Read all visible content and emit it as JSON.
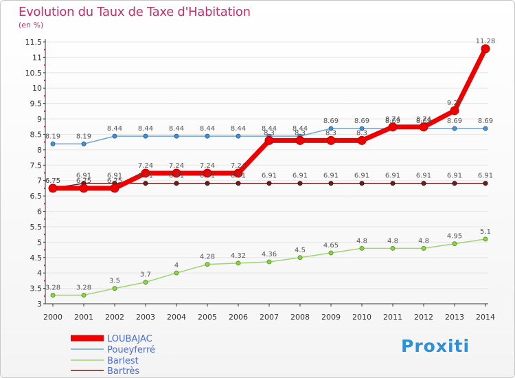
{
  "title": "Evolution du Taux de Taxe d'Habitation",
  "subtitle": "(en %)",
  "logo_text": "Proxiti",
  "chart_data": {
    "type": "line",
    "title": "Evolution du Taux de Taxe d'Habitation",
    "ylabel": "(en %)",
    "xlabel": "",
    "x": [
      "2000",
      "2001",
      "2002",
      "2003",
      "2004",
      "2005",
      "2006",
      "2007",
      "2008",
      "2009",
      "2010",
      "2011",
      "2012",
      "2013",
      "2014"
    ],
    "ylim": [
      3,
      11.5
    ],
    "yticks": [
      "3",
      "3.5",
      "4",
      "4.5",
      "5",
      "5.5",
      "6",
      "6.5",
      "7",
      "7.5",
      "8",
      "8.5",
      "9",
      "9.5",
      "10",
      "10.5",
      "11",
      "11.5"
    ],
    "series": [
      {
        "name": "Bartrès",
        "color": "#6b1e1e",
        "values": [
          6.75,
          6.91,
          6.91,
          6.91,
          6.91,
          6.91,
          6.91,
          6.91,
          6.91,
          6.91,
          6.91,
          6.91,
          6.91,
          6.91,
          6.91
        ],
        "labels": [
          "6.75",
          "6.91",
          "6.91",
          "6.91",
          "6.91",
          "6.91",
          "6.91",
          "6.91",
          "6.91",
          "6.91",
          "6.91",
          "6.91",
          "6.91",
          "6.91",
          "6.91"
        ]
      },
      {
        "name": "Barlest",
        "color": "#9fd46e",
        "values": [
          3.28,
          3.28,
          3.5,
          3.7,
          4,
          4.28,
          4.32,
          4.36,
          4.5,
          4.65,
          4.8,
          4.8,
          4.8,
          4.95,
          5.1
        ],
        "labels": [
          "3.28",
          "3.28",
          "3.5",
          "3.7",
          "4",
          "4.28",
          "4.32",
          "4.36",
          "4.5",
          "4.65",
          "4.8",
          "4.8",
          "4.8",
          "4.95",
          "5.1"
        ]
      },
      {
        "name": "Poueyferré",
        "color": "#6aa3d6",
        "values": [
          8.19,
          8.19,
          8.44,
          8.44,
          8.44,
          8.44,
          8.44,
          8.44,
          8.44,
          8.69,
          8.69,
          8.69,
          8.69,
          8.69,
          8.69
        ],
        "labels": [
          "8.19",
          "8.19",
          "8.44",
          "8.44",
          "8.44",
          "8.44",
          "8.44",
          "8.44",
          "8.44",
          "8.69",
          "8.69",
          "8.69",
          "8.69",
          "8.69",
          "8.69"
        ]
      },
      {
        "name": "LOUBAJAC",
        "color": "#ee0000",
        "values": [
          6.75,
          6.75,
          6.75,
          7.24,
          7.24,
          7.24,
          7.24,
          8.3,
          8.3,
          8.3,
          8.3,
          8.74,
          8.74,
          9.27,
          11.28
        ],
        "labels": [
          "6.75",
          "6.75",
          "6.75",
          "7.24",
          "7.24",
          "7.24",
          "7.24",
          "8.3",
          "8.3",
          "8.3",
          "8.3",
          "8.74",
          "8.74",
          "9.27",
          "11.28"
        ]
      }
    ],
    "legend": [
      "LOUBAJAC",
      "Poueyferré",
      "Barlest",
      "Bartrès"
    ],
    "legend_position": "bottom-left"
  }
}
